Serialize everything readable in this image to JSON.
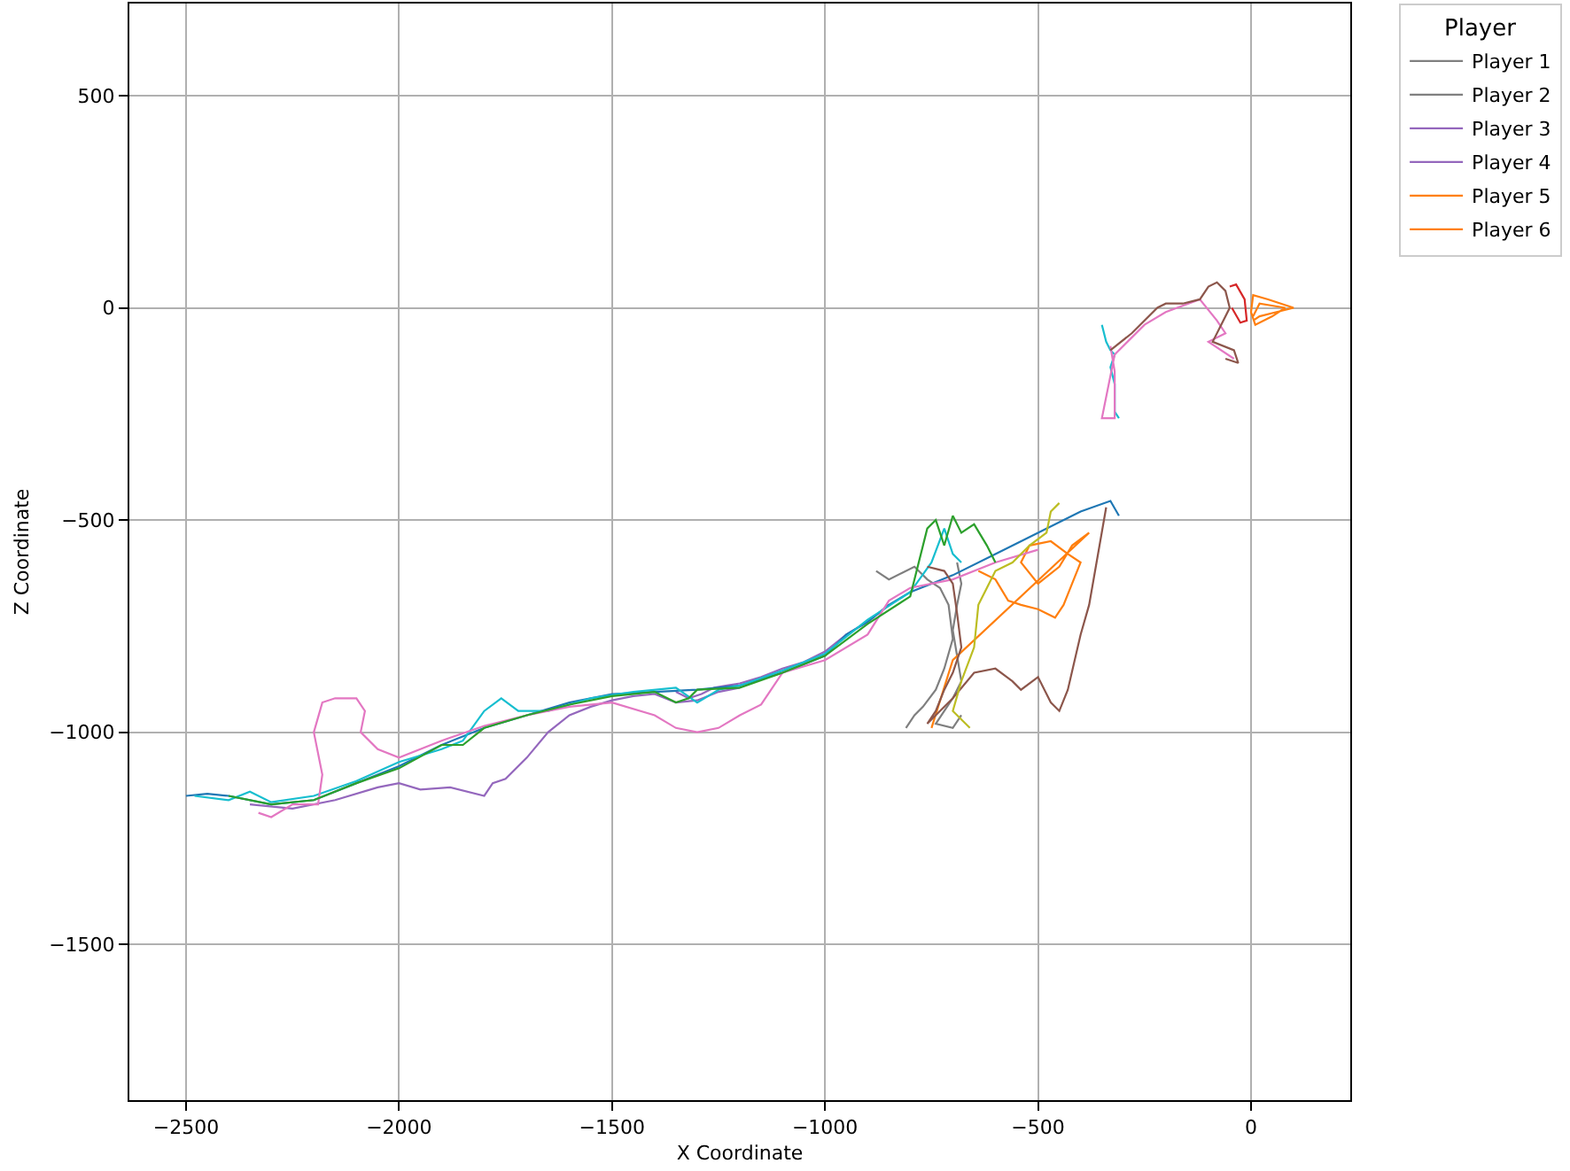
{
  "chart_data": {
    "type": "line",
    "xlabel": "X Coordinate",
    "ylabel": "Z Coordinate",
    "legend_title": "Player",
    "legend": "top right",
    "grid": true,
    "marker": "none",
    "line_style": "solid",
    "xlim": [
      -2633,
      233
    ],
    "ylim": [
      -1867,
      717
    ],
    "xticks": [
      {
        "value": -2500,
        "label": "−2500"
      },
      {
        "value": -2000,
        "label": "−2000"
      },
      {
        "value": -1500,
        "label": "−1500"
      },
      {
        "value": -1000,
        "label": "−1000"
      },
      {
        "value": -500,
        "label": "−500"
      },
      0
    ],
    "yticks": [
      {
        "value": -1500,
        "label": "−1500"
      },
      {
        "value": -1000,
        "label": "−1000"
      },
      {
        "value": -500,
        "label": "−500"
      },
      0,
      500
    ],
    "series": [
      {
        "name": "Player 1",
        "color": "#7f7f7f",
        "x": [
          -880,
          -850,
          -820,
          -790,
          -760,
          -730,
          -710,
          -700,
          -720,
          -740,
          -770,
          -790,
          -810
        ],
        "values": [
          -620,
          -640,
          -625,
          -610,
          -640,
          -660,
          -700,
          -780,
          -850,
          -900,
          -940,
          -960,
          -990
        ]
      },
      {
        "name": "Player 2",
        "color": "#7f7f7f",
        "x": [
          -690,
          -680,
          -690,
          -700,
          -690,
          -680,
          -700,
          -720,
          -740,
          -700,
          -680
        ],
        "values": [
          -600,
          -650,
          -700,
          -760,
          -820,
          -880,
          -920,
          -950,
          -980,
          -990,
          -960
        ]
      },
      {
        "name": "Player 3",
        "color": "#9467bd",
        "x": [
          -2350,
          -2250,
          -2150,
          -2050,
          -2000,
          -1950,
          -1880,
          -1800,
          -1780,
          -1750,
          -1700,
          -1650,
          -1600,
          -1550,
          -1500,
          -1450,
          -1400,
          -1350,
          -1300,
          -1250,
          -1200
        ],
        "values": [
          -1170,
          -1180,
          -1160,
          -1130,
          -1120,
          -1135,
          -1130,
          -1150,
          -1120,
          -1110,
          -1060,
          -1000,
          -960,
          -940,
          -925,
          -915,
          -910,
          -930,
          -925,
          -905,
          -895
        ]
      },
      {
        "name": "Player 4",
        "color": "#9467bd",
        "x": [
          -1350,
          -1320,
          -1290,
          -1260,
          -1230,
          -1200,
          -1150,
          -1100,
          -1050,
          -1000,
          -950,
          -900,
          -850
        ],
        "values": [
          -905,
          -920,
          -910,
          -895,
          -890,
          -885,
          -870,
          -850,
          -835,
          -810,
          -770,
          -740,
          -700
        ]
      },
      {
        "name": "Player 5",
        "color": "#ff7f0e",
        "x": [
          -640,
          -600,
          -570,
          -540,
          -500,
          -460,
          -440,
          -420,
          -400,
          -430,
          -470,
          -520,
          -540,
          -500,
          -450,
          -420,
          -380,
          -700,
          -750
        ],
        "values": [
          -620,
          -640,
          -690,
          -700,
          -710,
          -730,
          -700,
          -650,
          -600,
          -580,
          -550,
          -560,
          -600,
          -650,
          -610,
          -560,
          -530,
          -830,
          -990
        ]
      },
      {
        "name": "Player 6",
        "color": "#ff7f0e",
        "x": [
          5,
          20,
          60,
          100,
          40,
          5,
          0,
          10,
          50,
          80,
          20,
          5
        ],
        "values": [
          -30,
          -20,
          -10,
          0,
          20,
          30,
          -10,
          -40,
          -20,
          0,
          10,
          -20
        ]
      },
      {
        "color": "#1f77b4",
        "x": [
          -2500,
          -2450,
          -2400,
          -2300,
          -2200,
          -2100,
          -2000,
          -1900,
          -1800,
          -1700,
          -1600,
          -1500,
          -1400,
          -1300,
          -1200,
          -1100,
          -1000,
          -950,
          -900,
          -850,
          -800,
          -750,
          -700,
          -600,
          -500,
          -400,
          -330,
          -310
        ],
        "values": [
          -1150,
          -1145,
          -1150,
          -1170,
          -1160,
          -1120,
          -1080,
          -1030,
          -990,
          -960,
          -930,
          -910,
          -905,
          -900,
          -890,
          -860,
          -820,
          -770,
          -740,
          -700,
          -670,
          -650,
          -630,
          -580,
          -530,
          -480,
          -455,
          -490
        ]
      },
      {
        "color": "#17becf",
        "x": [
          -2480,
          -2400,
          -2350,
          -2300,
          -2200,
          -2100,
          -2000,
          -1900,
          -1850,
          -1800,
          -1760,
          -1720,
          -1650,
          -1550,
          -1450,
          -1350,
          -1300,
          -1250,
          -1200,
          -1100,
          -1000,
          -900,
          -800,
          -750,
          -720,
          -700,
          -680
        ],
        "values": [
          -1150,
          -1160,
          -1140,
          -1165,
          -1150,
          -1115,
          -1070,
          -1040,
          -1020,
          -950,
          -920,
          -950,
          -950,
          -920,
          -905,
          -895,
          -930,
          -900,
          -890,
          -855,
          -815,
          -735,
          -670,
          -600,
          -520,
          -580,
          -600
        ]
      },
      {
        "color": "#17becf",
        "x": [
          -350,
          -340,
          -330,
          -320,
          -330,
          -320,
          -320,
          -320,
          -310
        ],
        "values": [
          -40,
          -80,
          -100,
          -110,
          -140,
          -180,
          -230,
          -245,
          -260
        ]
      },
      {
        "color": "#e377c2",
        "x": [
          -2330,
          -2300,
          -2250,
          -2190,
          -2180,
          -2200,
          -2180,
          -2150,
          -2100,
          -2080,
          -2090,
          -2050,
          -2000,
          -1900,
          -1800,
          -1700,
          -1600,
          -1500,
          -1400,
          -1350,
          -1300,
          -1250,
          -1200,
          -1150,
          -1100,
          -1000,
          -900,
          -850,
          -800,
          -700,
          -600,
          -500
        ],
        "values": [
          -1190,
          -1200,
          -1170,
          -1170,
          -1100,
          -1000,
          -930,
          -920,
          -920,
          -950,
          -1000,
          -1040,
          -1060,
          -1020,
          -985,
          -960,
          -940,
          -930,
          -960,
          -990,
          -1000,
          -990,
          -960,
          -935,
          -860,
          -830,
          -770,
          -690,
          -660,
          -640,
          -600,
          -570
        ]
      },
      {
        "color": "#e377c2",
        "x": [
          -330,
          -325,
          -320,
          -320,
          -350,
          -320,
          -250,
          -200,
          -120,
          -80,
          -60,
          -100,
          -40
        ],
        "values": [
          -90,
          -120,
          -150,
          -260,
          -260,
          -110,
          -40,
          -10,
          20,
          -30,
          -60,
          -80,
          -120
        ]
      },
      {
        "color": "#2ca02c",
        "x": [
          -2400,
          -2300,
          -2200,
          -2100,
          -2000,
          -1900,
          -1850,
          -1800,
          -1700,
          -1600,
          -1500,
          -1400,
          -1350,
          -1320,
          -1300,
          -1200,
          -1100,
          -1000,
          -900,
          -800,
          -760,
          -740,
          -720,
          -700,
          -680,
          -650,
          -620,
          -600
        ],
        "values": [
          -1150,
          -1170,
          -1160,
          -1120,
          -1085,
          -1030,
          -1030,
          -990,
          -960,
          -935,
          -915,
          -905,
          -930,
          -920,
          -900,
          -895,
          -860,
          -820,
          -745,
          -680,
          -520,
          -500,
          -560,
          -490,
          -530,
          -510,
          -560,
          -600
        ]
      },
      {
        "color": "#8c564b",
        "x": [
          -760,
          -720,
          -700,
          -690,
          -680,
          -700,
          -720,
          -740,
          -760,
          -700,
          -650,
          -600,
          -560,
          -540,
          -500,
          -470,
          -450,
          -430,
          -400,
          -380,
          -340
        ],
        "values": [
          -610,
          -620,
          -650,
          -720,
          -800,
          -860,
          -900,
          -950,
          -980,
          -920,
          -860,
          -850,
          -880,
          -900,
          -870,
          -930,
          -950,
          -900,
          -770,
          -700,
          -470
        ]
      },
      {
        "color": "#8c564b",
        "x": [
          -330,
          -280,
          -220,
          -200,
          -160,
          -120,
          -100,
          -80,
          -60,
          -50,
          -70,
          -90,
          -40,
          -30,
          -60
        ],
        "values": [
          -100,
          -60,
          0,
          10,
          10,
          20,
          50,
          60,
          40,
          0,
          -40,
          -80,
          -100,
          -130,
          -120
        ]
      },
      {
        "color": "#bcbd22",
        "x": [
          -450,
          -470,
          -480,
          -520,
          -560,
          -600,
          -620,
          -640,
          -650,
          -680,
          -700,
          -660
        ],
        "values": [
          -460,
          -480,
          -530,
          -560,
          -600,
          -620,
          -660,
          -700,
          -800,
          -880,
          -950,
          -990
        ]
      },
      {
        "color": "#d62728",
        "x": [
          -50,
          -35,
          -15,
          -10,
          -25,
          -45
        ],
        "values": [
          50,
          55,
          20,
          -30,
          -35,
          0
        ]
      }
    ]
  }
}
